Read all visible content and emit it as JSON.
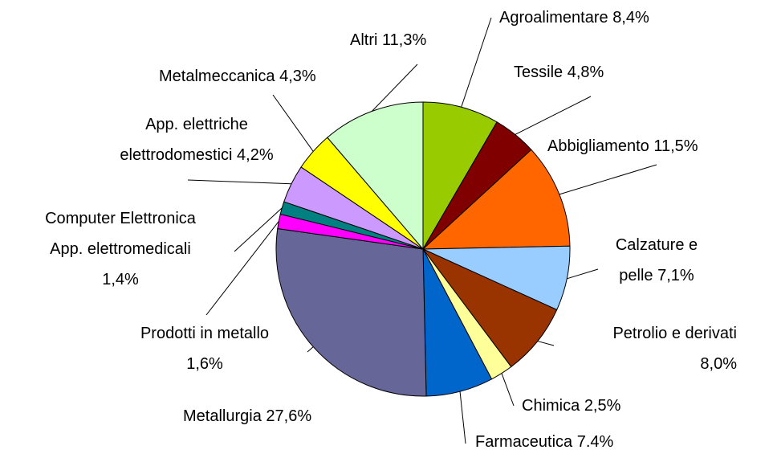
{
  "chart_data": {
    "type": "pie",
    "categories": [
      "Agroalimentare",
      "Tessile",
      "Abbigliamento",
      "Calzature e\npelle",
      "Petrolio e derivati",
      "Chimica",
      "Farmaceutica",
      "Metallurgia",
      "Prodotti in metallo",
      "Computer Elettronica\nApp. elettromedicali",
      "App. elettriche\nelettrodomestici",
      "Metalmeccanica",
      "Altri"
    ],
    "values": [
      8.4,
      4.8,
      11.5,
      7.1,
      8.0,
      2.5,
      7.4,
      27.6,
      1.6,
      1.4,
      4.2,
      4.3,
      11.3
    ],
    "value_labels": [
      "8,4%",
      "4,8%",
      "11,5%",
      "7,1%",
      "8,0%",
      "2,5%",
      "7.4%",
      "27,6%",
      "1,6%",
      "1,4%",
      "4,2%",
      "4,3%",
      "11,3%"
    ],
    "colors": [
      "#99cc00",
      "#800000",
      "#ff6600",
      "#99ccff",
      "#993300",
      "#ffff99",
      "#0066cc",
      "#666699",
      "#ff00ff",
      "#008080",
      "#cc99ff",
      "#ffff00",
      "#ccffcc"
    ]
  }
}
